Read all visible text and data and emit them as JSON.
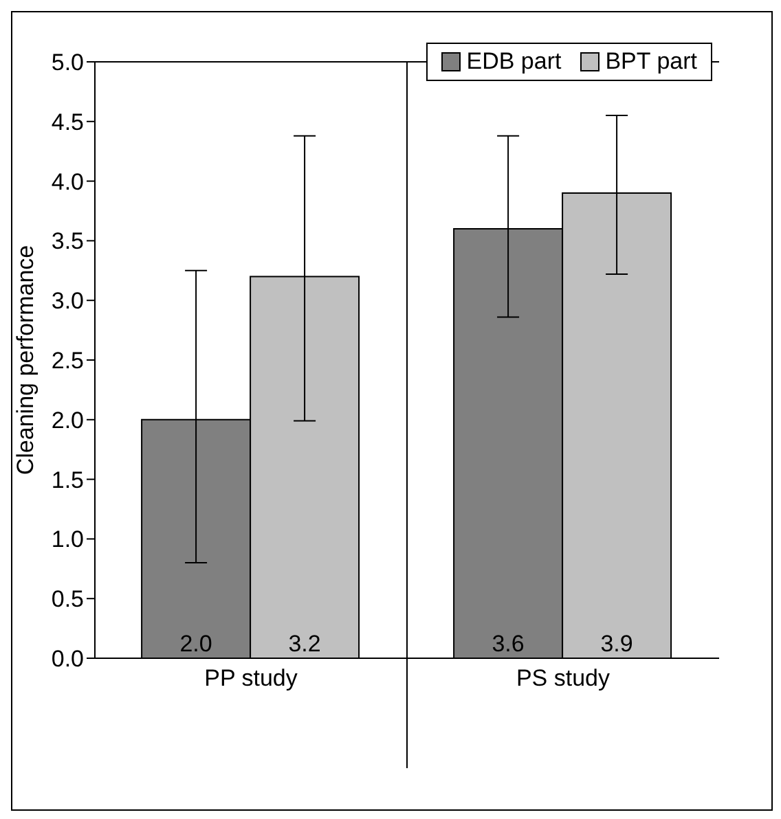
{
  "chart_data": {
    "type": "bar",
    "ylabel": "Cleaning performance",
    "categories": [
      "PP study",
      "PS study"
    ],
    "series": [
      {
        "name": "EDB part",
        "color": "#808080",
        "values": [
          2.0,
          3.6
        ],
        "errors": [
          [
            0.8,
            3.25
          ],
          [
            2.86,
            4.38
          ]
        ],
        "value_labels": [
          "2.0",
          "3.6"
        ]
      },
      {
        "name": "BPT part",
        "color": "#c0c0c0",
        "values": [
          3.2,
          3.9
        ],
        "errors": [
          [
            1.99,
            4.38
          ],
          [
            3.22,
            4.55
          ]
        ],
        "value_labels": [
          "3.2",
          "3.9"
        ]
      }
    ],
    "ylim": [
      0,
      5
    ],
    "yticks": [
      {
        "value": 0,
        "label": "0.0"
      },
      {
        "value": 0.5,
        "label": "0.5"
      },
      {
        "value": 1,
        "label": "1.0"
      },
      {
        "value": 1.5,
        "label": "1.5"
      },
      {
        "value": 2,
        "label": "2.0"
      },
      {
        "value": 2.5,
        "label": "2.5"
      },
      {
        "value": 3,
        "label": "3.0"
      },
      {
        "value": 3.5,
        "label": "3.5"
      },
      {
        "value": 4,
        "label": "4.0"
      },
      {
        "value": 4.5,
        "label": "4.5"
      },
      {
        "value": 5,
        "label": "5.0"
      }
    ],
    "grid": false,
    "legend": "top right"
  }
}
